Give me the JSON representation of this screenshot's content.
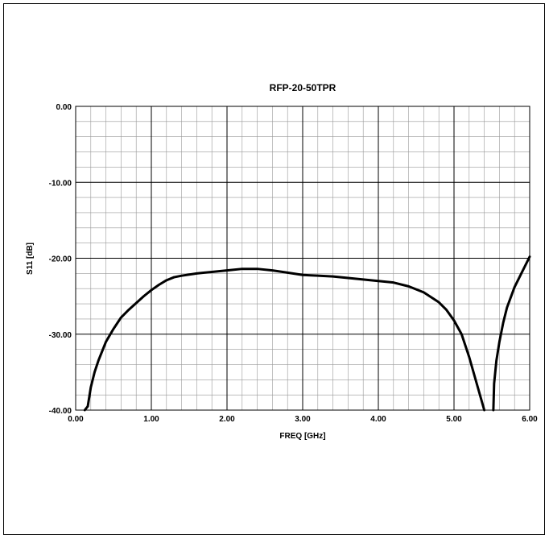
{
  "chart_data": {
    "type": "line",
    "title": "RFP-20-50TPR",
    "xlabel": "FREQ [GHz]",
    "ylabel": "S11 [dB]",
    "xlim": [
      0,
      6
    ],
    "ylim": [
      -40,
      0
    ],
    "x_major_step": 1,
    "x_minor_step": 0.2,
    "y_major_step": 10,
    "y_minor_step": 2,
    "x_tick_labels": [
      "0.00",
      "1.00",
      "2.00",
      "3.00",
      "4.00",
      "5.00",
      "6.00"
    ],
    "y_tick_labels": [
      "0.00",
      "-10.00",
      "-20.00",
      "-30.00",
      "-40.00"
    ],
    "grid": true,
    "line_color": "#000000",
    "series": [
      {
        "segments": [
          {
            "x": [
              0.12,
              0.16,
              0.2,
              0.25,
              0.3,
              0.4,
              0.5,
              0.6,
              0.7,
              0.8,
              0.9,
              1.0,
              1.1,
              1.2,
              1.3,
              1.4,
              1.6,
              1.8,
              2.0,
              2.2,
              2.4,
              2.6,
              2.8,
              3.0,
              3.2,
              3.4,
              3.6,
              3.8,
              4.0,
              4.2,
              4.4,
              4.6,
              4.8,
              4.9,
              5.0,
              5.1,
              5.2,
              5.3,
              5.4
            ],
            "y": [
              -40.0,
              -39.5,
              -37.0,
              -35.0,
              -33.5,
              -31.0,
              -29.3,
              -27.8,
              -26.8,
              -25.9,
              -25.0,
              -24.2,
              -23.5,
              -22.9,
              -22.5,
              -22.3,
              -22.0,
              -21.8,
              -21.6,
              -21.4,
              -21.4,
              -21.6,
              -21.9,
              -22.2,
              -22.3,
              -22.4,
              -22.6,
              -22.8,
              -23.0,
              -23.2,
              -23.7,
              -24.5,
              -25.8,
              -26.8,
              -28.2,
              -30.0,
              -33.0,
              -36.5,
              -40.0
            ]
          },
          {
            "x": [
              5.52,
              5.53,
              5.56,
              5.6,
              5.65,
              5.7,
              5.8,
              5.9,
              6.0
            ],
            "y": [
              -40.0,
              -36.5,
              -33.5,
              -31.0,
              -28.5,
              -26.5,
              -23.8,
              -21.8,
              -19.8
            ]
          }
        ]
      }
    ]
  }
}
